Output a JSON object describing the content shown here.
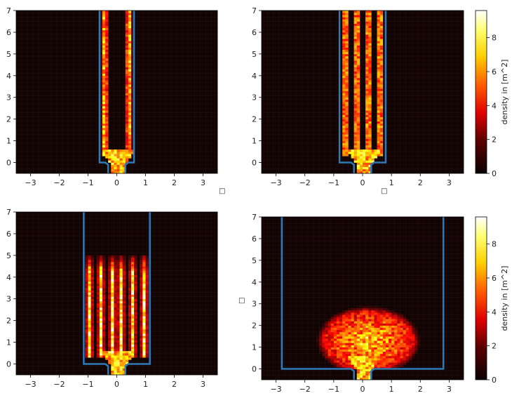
{
  "figure": {
    "colorbar_label": "density in [m^2]",
    "colorbar_ticks": [
      0,
      2,
      4,
      6,
      8
    ],
    "colorbar_range": [
      0,
      9.6
    ],
    "colormap": "hot",
    "boundary_color": "#2e7ab8",
    "background_color": "#130404",
    "stray_glyph": "□"
  },
  "chart_data": [
    {
      "type": "heatmap",
      "panel": "top-left",
      "xlim": [
        -3.5,
        3.5
      ],
      "ylim": [
        -0.5,
        7
      ],
      "xticks": [
        -3,
        -2,
        -1,
        0,
        1,
        2,
        3
      ],
      "yticks": [
        0,
        1,
        2,
        3,
        4,
        5,
        6,
        7
      ],
      "corridor_half_width": 0.6,
      "exit_half_width": 0.3,
      "streams_x": [
        -0.42,
        0.42
      ],
      "streams_y_range": [
        0.3,
        7
      ],
      "cloud": null,
      "colorbar": false
    },
    {
      "type": "heatmap",
      "panel": "top-right",
      "xlim": [
        -3.5,
        3.5
      ],
      "ylim": [
        -0.5,
        7
      ],
      "xticks": [
        -3,
        -2,
        -1,
        0,
        1,
        2,
        3
      ],
      "yticks": [
        0,
        1,
        2,
        3,
        4,
        5,
        6,
        7
      ],
      "corridor_half_width": 0.8,
      "exit_half_width": 0.3,
      "streams_x": [
        -0.6,
        -0.2,
        0.2,
        0.6
      ],
      "streams_y_range": [
        0.3,
        7
      ],
      "cloud": null,
      "colorbar": true
    },
    {
      "type": "heatmap",
      "panel": "bottom-left",
      "xlim": [
        -3.5,
        3.5
      ],
      "ylim": [
        -0.5,
        7
      ],
      "xticks": [
        -3,
        -2,
        -1,
        0,
        1,
        2,
        3
      ],
      "yticks": [
        0,
        1,
        2,
        3,
        4,
        5,
        6,
        7
      ],
      "corridor_half_width": 1.15,
      "exit_half_width": 0.3,
      "streams_x": [
        -0.95,
        -0.55,
        -0.15,
        0.15,
        0.55,
        0.95
      ],
      "streams_y_range": [
        0.3,
        5
      ],
      "cloud": null,
      "colorbar": false
    },
    {
      "type": "heatmap",
      "panel": "bottom-right",
      "xlim": [
        -3.5,
        3.5
      ],
      "ylim": [
        -0.5,
        7
      ],
      "xticks": [
        -3,
        -2,
        -1,
        0,
        1,
        2,
        3
      ],
      "yticks": [
        0,
        1,
        2,
        3,
        4,
        5,
        6,
        7
      ],
      "corridor_half_width": 2.8,
      "exit_half_width": 0.3,
      "streams_x": [],
      "streams_y_range": [
        0,
        0
      ],
      "cloud": {
        "center": [
          0.2,
          1.3
        ],
        "radius_x": 1.8,
        "radius_y": 1.6
      },
      "colorbar": true
    }
  ]
}
